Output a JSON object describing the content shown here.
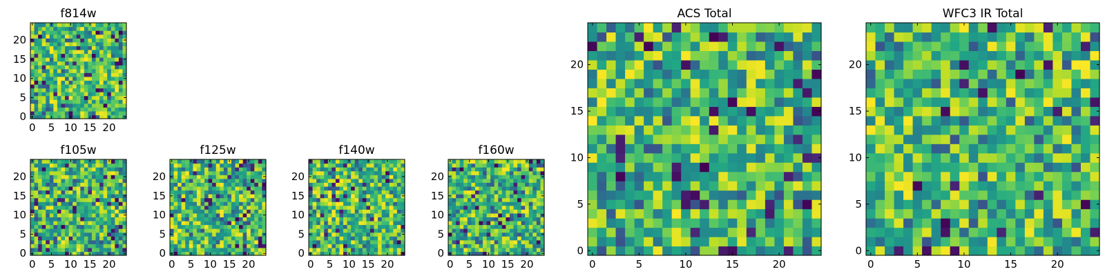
{
  "chart_data": [
    {
      "type": "heatmap",
      "title": "f814w",
      "grid": [
        25,
        25
      ],
      "xlim": [
        0,
        24
      ],
      "ylim": [
        0,
        24
      ],
      "xticks": [
        0,
        5,
        10,
        15,
        20
      ],
      "yticks": [
        0,
        5,
        10,
        15,
        20
      ],
      "colormap": "viridis",
      "seed": 11
    },
    {
      "type": "heatmap",
      "title": "f105w",
      "grid": [
        25,
        25
      ],
      "xlim": [
        0,
        24
      ],
      "ylim": [
        0,
        24
      ],
      "xticks": [
        0,
        5,
        10,
        15,
        20
      ],
      "yticks": [
        0,
        5,
        10,
        15,
        20
      ],
      "colormap": "viridis",
      "seed": 23
    },
    {
      "type": "heatmap",
      "title": "f125w",
      "grid": [
        25,
        25
      ],
      "xlim": [
        0,
        24
      ],
      "ylim": [
        0,
        24
      ],
      "xticks": [
        0,
        5,
        10,
        15,
        20
      ],
      "yticks": [
        0,
        5,
        10,
        15,
        20
      ],
      "colormap": "viridis",
      "seed": 37
    },
    {
      "type": "heatmap",
      "title": "f140w",
      "grid": [
        25,
        25
      ],
      "xlim": [
        0,
        24
      ],
      "ylim": [
        0,
        24
      ],
      "xticks": [
        0,
        5,
        10,
        15,
        20
      ],
      "yticks": [
        0,
        5,
        10,
        15,
        20
      ],
      "colormap": "viridis",
      "seed": 41
    },
    {
      "type": "heatmap",
      "title": "f160w",
      "grid": [
        25,
        25
      ],
      "xlim": [
        0,
        24
      ],
      "ylim": [
        0,
        24
      ],
      "xticks": [
        0,
        5,
        10,
        15,
        20
      ],
      "yticks": [
        0,
        5,
        10,
        15,
        20
      ],
      "colormap": "viridis",
      "seed": 53
    },
    {
      "type": "heatmap",
      "title": "ACS Total",
      "grid": [
        25,
        25
      ],
      "xlim": [
        0,
        24
      ],
      "ylim": [
        0,
        24
      ],
      "xticks": [
        0,
        5,
        10,
        15,
        20
      ],
      "yticks": [
        0,
        5,
        10,
        15,
        20
      ],
      "colormap": "viridis",
      "seed": 67
    },
    {
      "type": "heatmap",
      "title": "WFC3 IR Total",
      "grid": [
        25,
        25
      ],
      "xlim": [
        0,
        24
      ],
      "ylim": [
        0,
        24
      ],
      "xticks": [
        0,
        5,
        10,
        15,
        20
      ],
      "yticks": [
        0,
        5,
        10,
        15,
        20
      ],
      "colormap": "viridis",
      "seed": 79
    }
  ]
}
